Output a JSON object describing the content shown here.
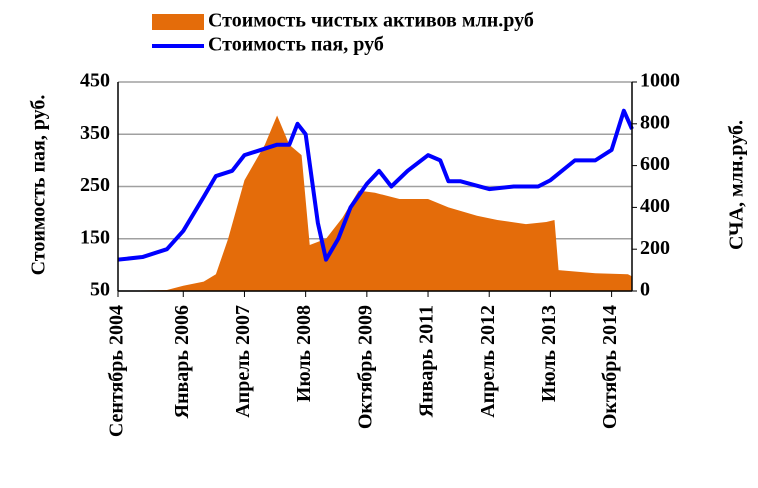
{
  "chart_data": {
    "type": "line-area",
    "series": [
      {
        "name": "Стоимость чистых активов млн.руб",
        "kind": "area",
        "axis": "y2",
        "color": "#e46c0a",
        "x": [
          "2004-09",
          "2005-09",
          "2006-01",
          "2006-06",
          "2006-09",
          "2006-12",
          "2007-04",
          "2007-09",
          "2007-12",
          "2008-03",
          "2008-06",
          "2008-08",
          "2008-12",
          "2009-04",
          "2009-08",
          "2009-12",
          "2010-06",
          "2011-01",
          "2011-06",
          "2012-01",
          "2012-06",
          "2013-01",
          "2013-06",
          "2013-08",
          "2013-09",
          "2014-06",
          "2015-02",
          "2015-03"
        ],
        "values": [
          0,
          5,
          25,
          45,
          80,
          250,
          530,
          700,
          840,
          700,
          650,
          220,
          250,
          350,
          480,
          470,
          440,
          440,
          400,
          360,
          340,
          320,
          330,
          340,
          100,
          85,
          80,
          70
        ]
      },
      {
        "name": "Стоимость пая, руб",
        "kind": "line",
        "axis": "y",
        "color": "#0000ff",
        "x": [
          "2004-09",
          "2005-03",
          "2005-09",
          "2006-01",
          "2006-06",
          "2006-09",
          "2007-01",
          "2007-04",
          "2007-08",
          "2007-12",
          "2008-03",
          "2008-05",
          "2008-07",
          "2008-10",
          "2008-12",
          "2009-03",
          "2009-06",
          "2009-10",
          "2010-01",
          "2010-04",
          "2010-08",
          "2011-01",
          "2011-04",
          "2011-06",
          "2011-09",
          "2012-04",
          "2012-10",
          "2013-04",
          "2013-07",
          "2014-01",
          "2014-06",
          "2014-10",
          "2015-01",
          "2015-03"
        ],
        "values": [
          110,
          115,
          130,
          165,
          230,
          270,
          280,
          310,
          320,
          330,
          330,
          370,
          350,
          180,
          110,
          150,
          210,
          255,
          280,
          250,
          280,
          310,
          300,
          260,
          260,
          245,
          250,
          250,
          262,
          300,
          300,
          320,
          395,
          360
        ]
      }
    ],
    "xticks": [
      {
        "value": "2004-09",
        "label": "Сентябрь 2004"
      },
      {
        "value": "2006-01",
        "label": "Январь 2006"
      },
      {
        "value": "2007-04",
        "label": "Апрель 2007"
      },
      {
        "value": "2008-07",
        "label": "Июль 2008"
      },
      {
        "value": "2009-10",
        "label": "Октябрь 2009"
      },
      {
        "value": "2011-01",
        "label": "Январь 2011"
      },
      {
        "value": "2012-04",
        "label": "Апрель 2012"
      },
      {
        "value": "2013-07",
        "label": "Июль 2013"
      },
      {
        "value": "2014-10",
        "label": "Октябрь 2014"
      }
    ],
    "xlim": [
      "2004-09",
      "2015-03"
    ],
    "ylabel": "Стоимость пая, руб.",
    "ylim": [
      50,
      450
    ],
    "yticks": [
      50,
      150,
      250,
      350,
      450
    ],
    "y2label": "СЧА, млн.руб.",
    "y2lim": [
      0,
      1000
    ],
    "y2ticks": [
      0,
      200,
      400,
      600,
      800,
      1000
    ],
    "grid": true
  }
}
